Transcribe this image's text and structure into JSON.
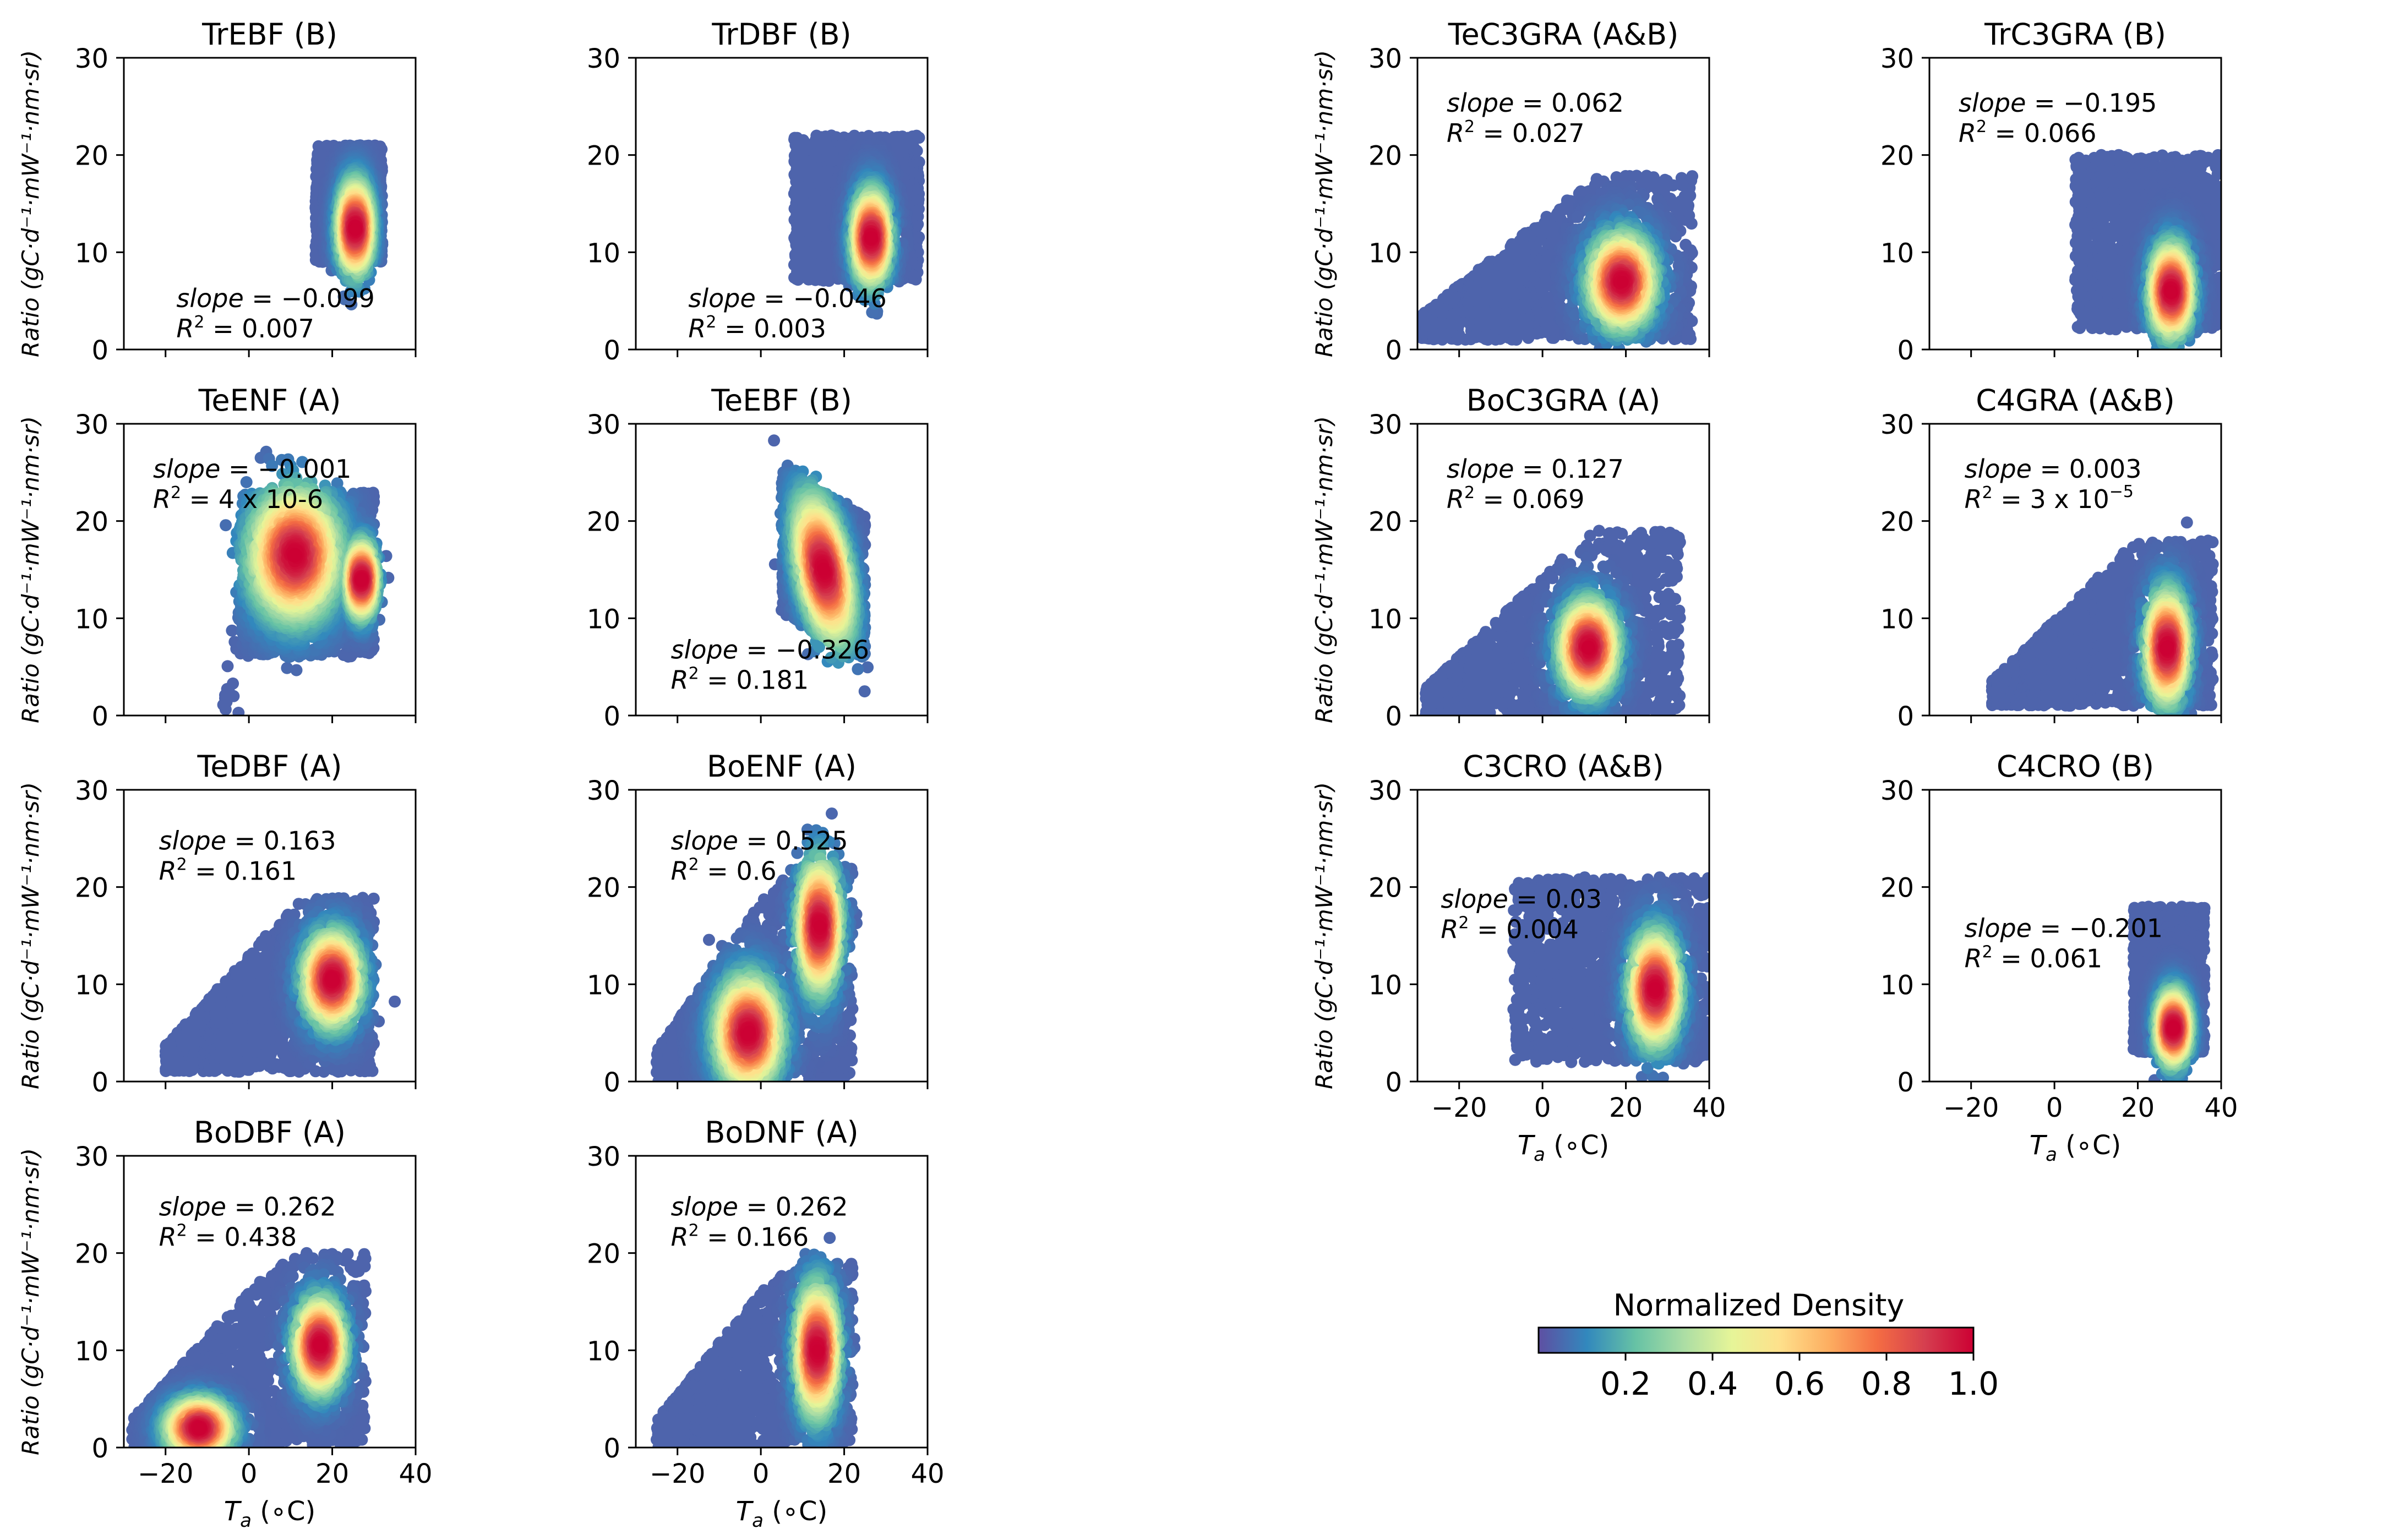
{
  "chart_data": {
    "type": "scatter",
    "shared": {
      "xlabel": "T_a (∘C)",
      "ylabel": "Ratio (gC·d⁻¹·mW⁻¹·nm·sr)",
      "xlim": [
        -30,
        40
      ],
      "ylim": [
        0,
        30
      ],
      "xticks": [
        -20,
        0,
        20,
        40
      ],
      "yticks": [
        0,
        10,
        20,
        30
      ],
      "grid": false,
      "colormap": "Spectral_r"
    },
    "colorbar": {
      "title": "Normalized Density",
      "ticks": [
        0.2,
        0.4,
        0.6,
        0.8,
        1.0
      ],
      "tick_labels": [
        "0.2",
        "0.4",
        "0.6",
        "0.8",
        "1.0"
      ],
      "range": [
        0,
        1
      ],
      "stops": [
        "#5e4fa2",
        "#3288bd",
        "#66c2a5",
        "#abdda4",
        "#e6f598",
        "#fee08b",
        "#fdae61",
        "#f46d43",
        "#d53e4f",
        "#cc0033"
      ]
    },
    "panels": [
      {
        "title": "TrEBF (B)",
        "slope_value": "−0.099",
        "r2_value": "0.007",
        "cloud": {
          "x_range": [
            16,
            32
          ],
          "y_range": [
            9,
            21
          ],
          "core": [
            [
              25.5,
              12.5,
              2.0,
              2.5
            ]
          ]
        }
      },
      {
        "title": "TrDBF (B)",
        "slope_value": "−0.046",
        "r2_value": "0.003",
        "cloud": {
          "x_range": [
            8,
            38
          ],
          "y_range": [
            7,
            22
          ],
          "core": [
            [
              26.5,
              11.5,
              2.2,
              2.5
            ]
          ]
        }
      },
      {
        "title": "TeENF (A)",
        "slope_value": "−0.001",
        "r2_value": "4 x 10-6",
        "r2_superscript": "",
        "cloud": {
          "x_range": [
            -2,
            30
          ],
          "y_range": [
            6,
            23
          ],
          "tail": [
            [
              -5,
              2
            ],
            [
              -2,
              10
            ]
          ],
          "core": [
            [
              11,
              16.5,
              5.5,
              3.5
            ],
            [
              27,
              14,
              1.8,
              2.0
            ]
          ]
        }
      },
      {
        "title": "TeEBF (B)",
        "slope_value": "−0.326",
        "r2_value": "0.181",
        "cloud": {
          "x_range": [
            5,
            25
          ],
          "y_range": [
            8,
            23
          ],
          "tilt": -0.5,
          "core": [
            [
              15,
              15,
              3.5,
              3.5
            ]
          ]
        }
      },
      {
        "title": "TeDBF (A)",
        "slope_value": "0.163",
        "r2_value": "0.161",
        "cloud": {
          "x_range": [
            -20,
            30
          ],
          "y_range": [
            1,
            19
          ],
          "ramp": true,
          "core": [
            [
              20,
              10.5,
              3.5,
              2.5
            ]
          ]
        }
      },
      {
        "title": "BoENF (A)",
        "slope_value": "0.525",
        "r2_value": "0.6",
        "cloud": {
          "x_range": [
            -25,
            22
          ],
          "y_range": [
            0,
            22
          ],
          "ramp": true,
          "core": [
            [
              14,
              16,
              2.5,
              3.5
            ],
            [
              -3,
              5,
              4.0,
              3.0
            ]
          ]
        }
      },
      {
        "title": "BoDBF (A)",
        "slope_value": "0.262",
        "r2_value": "0.438",
        "cloud": {
          "x_range": [
            -28,
            28
          ],
          "y_range": [
            0,
            20
          ],
          "ramp": true,
          "core": [
            [
              17,
              10.5,
              3.0,
              2.5
            ],
            [
              -12,
              2,
              4.0,
              1.5
            ]
          ]
        }
      },
      {
        "title": "BoDNF (A)",
        "slope_value": "0.262",
        "r2_value": "0.166",
        "cloud": {
          "x_range": [
            -25,
            22
          ],
          "y_range": [
            0,
            19
          ],
          "ramp": true,
          "core": [
            [
              13.5,
              10,
              2.5,
              3.5
            ]
          ]
        }
      },
      {
        "title": "TeC3GRA (A&B)",
        "slope_value": "0.062",
        "r2_value": "0.027",
        "cloud": {
          "x_range": [
            -29,
            36
          ],
          "y_range": [
            1,
            18
          ],
          "ramp": true,
          "core": [
            [
              19,
              7,
              4.0,
              2.5
            ]
          ]
        }
      },
      {
        "title": "TrC3GRA (B)",
        "slope_value": "−0.195",
        "r2_value": "0.066",
        "cloud": {
          "x_range": [
            5,
            40
          ],
          "y_range": [
            2,
            20
          ],
          "core": [
            [
              28,
              6,
              2.5,
              2.5
            ]
          ]
        }
      },
      {
        "title": "BoC3GRA (A)",
        "slope_value": "0.127",
        "r2_value": "0.069",
        "cloud": {
          "x_range": [
            -28,
            33
          ],
          "y_range": [
            0,
            19
          ],
          "ramp": true,
          "core": [
            [
              11,
              7,
              3.5,
              2.5
            ]
          ]
        }
      },
      {
        "title": "C4GRA (A&B)",
        "slope_value": "0.003",
        "r2_value": "3 x 10",
        "r2_superscript": "−5",
        "cloud": {
          "x_range": [
            -15,
            38
          ],
          "y_range": [
            1,
            18
          ],
          "ramp": true,
          "core": [
            [
              27,
              7,
              2.5,
              3.0
            ]
          ]
        }
      },
      {
        "title": "C3CRO (A&B)",
        "slope_value": "0.03",
        "r2_value": "0.004",
        "cloud": {
          "x_range": [
            -7,
            40
          ],
          "y_range": [
            2,
            21
          ],
          "core": [
            [
              27,
              9.5,
              3.0,
              3.0
            ]
          ]
        }
      },
      {
        "title": "C4CRO (B)",
        "slope_value": "−0.201",
        "r2_value": "0.061",
        "cloud": {
          "x_range": [
            19,
            36
          ],
          "y_range": [
            3,
            18
          ],
          "core": [
            [
              28.5,
              5.5,
              2.0,
              2.0
            ]
          ]
        }
      }
    ]
  }
}
